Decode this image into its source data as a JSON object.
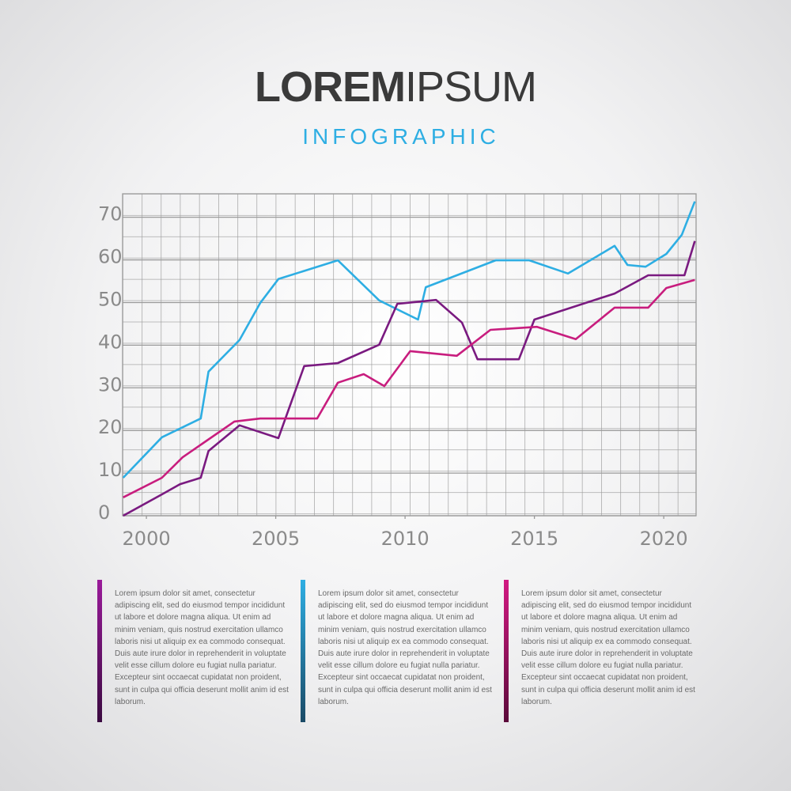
{
  "title_parts": [
    "LOREM",
    "IPSUM"
  ],
  "subtitle": "INFOGRAPHIC",
  "chart_data": {
    "type": "line",
    "xlim": [
      1999.08,
      2021.25
    ],
    "xticks": [
      2000,
      2005,
      2010,
      2015,
      2020
    ],
    "ylim": [
      0,
      75.5
    ],
    "yticks": [
      0,
      10,
      20,
      30,
      40,
      50,
      60,
      70
    ],
    "grid": true,
    "series": [
      {
        "color": "#2eaee3",
        "x": [
          1999.1,
          2000.6,
          2002.1,
          2002.4,
          2003.6,
          2004.4,
          2005.1,
          2007.4,
          2009.0,
          2010.5,
          2010.8,
          2013.5,
          2014.8,
          2016.3,
          2018.1,
          2018.6,
          2019.3,
          2020.1,
          2020.7,
          2021.2
        ],
        "values": [
          8.9,
          18.4,
          22.8,
          33.8,
          41.2,
          49.9,
          55.5,
          59.9,
          50.5,
          46.0,
          53.6,
          59.9,
          59.9,
          56.8,
          63.3,
          58.8,
          58.4,
          61.4,
          65.9,
          73.7
        ]
      },
      {
        "color": "#7a1a80",
        "x": [
          1999.1,
          2000.6,
          2001.3,
          2002.1,
          2002.4,
          2003.6,
          2005.1,
          2006.1,
          2007.4,
          2009.0,
          2009.7,
          2011.2,
          2012.2,
          2012.8,
          2014.4,
          2015.0,
          2018.1,
          2019.4,
          2020.8,
          2021.2
        ],
        "values": [
          0,
          5.0,
          7.4,
          8.9,
          15.2,
          21.2,
          18.2,
          35.1,
          35.8,
          40.1,
          49.7,
          50.6,
          45.3,
          36.7,
          36.7,
          46.0,
          52.1,
          56.4,
          56.4,
          64.4
        ]
      },
      {
        "color": "#c81d7e",
        "x": [
          1999.1,
          2000.6,
          2001.4,
          2003.4,
          2004.4,
          2006.6,
          2007.4,
          2008.4,
          2009.2,
          2010.2,
          2012.0,
          2013.3,
          2015.1,
          2016.6,
          2018.1,
          2019.4,
          2020.1,
          2021.2
        ],
        "values": [
          4.3,
          8.9,
          13.7,
          22.1,
          22.8,
          22.8,
          31.2,
          33.2,
          30.4,
          38.6,
          37.5,
          43.6,
          44.3,
          41.4,
          48.8,
          48.8,
          53.4,
          55.3
        ]
      }
    ]
  },
  "text_blocks": [
    "Lorem ipsum dolor sit amet, consectetur adipiscing elit, sed do eiusmod tempor incididunt ut labore et dolore magna aliqua. Ut enim ad minim veniam, quis nostrud exercitation ullamco laboris nisi ut aliquip ex ea commodo consequat. Duis aute irure dolor in reprehenderit in voluptate velit esse cillum dolore eu fugiat nulla pariatur. Excepteur sint occaecat cupidatat non proident, sunt in culpa qui officia deserunt mollit anim id est laborum.",
    "Lorem ipsum dolor sit amet, consectetur adipiscing elit, sed do eiusmod tempor incididunt ut labore et dolore magna aliqua. Ut enim ad minim veniam, quis nostrud exercitation ullamco laboris nisi ut aliquip ex ea commodo consequat. Duis aute irure dolor in reprehenderit in voluptate velit esse cillum dolore eu fugiat nulla pariatur. Excepteur sint occaecat cupidatat non proident, sunt in culpa qui officia deserunt mollit anim id est laborum.",
    "Lorem ipsum dolor sit amet, consectetur adipiscing elit, sed do eiusmod tempor incididunt ut labore et dolore magna aliqua. Ut enim ad minim veniam, quis nostrud exercitation ullamco laboris nisi ut aliquip ex ea commodo consequat. Duis aute irure dolor in reprehenderit in voluptate velit esse cillum dolore eu fugiat nulla pariatur. Excepteur sint occaecat cupidatat non proident, sunt in culpa qui officia deserunt mollit anim id est laborum."
  ]
}
